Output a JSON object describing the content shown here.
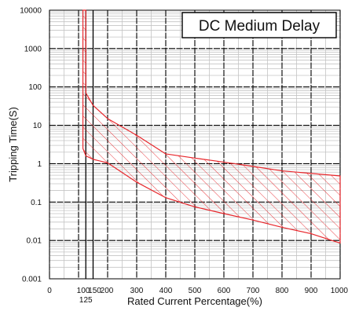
{
  "chart_data": {
    "type": "area",
    "title": "DC Medium Delay",
    "xlabel": "Rated Current Percentage(%)",
    "ylabel": "Tripping Time(S)",
    "x_scale": "linear",
    "y_scale": "log",
    "xlim": [
      0,
      1000
    ],
    "ylim": [
      0.001,
      10000
    ],
    "x_ticks": [
      {
        "value": 0,
        "label": "0"
      },
      {
        "value": 100,
        "label": "100"
      },
      {
        "value": 125,
        "label": "125"
      },
      {
        "value": 150,
        "label": "150"
      },
      {
        "value": 200,
        "label": "200"
      },
      {
        "value": 300,
        "label": "300"
      },
      {
        "value": 400,
        "label": "400"
      },
      {
        "value": 500,
        "label": "500"
      },
      {
        "value": 600,
        "label": "600"
      },
      {
        "value": 700,
        "label": "700"
      },
      {
        "value": 800,
        "label": "800"
      },
      {
        "value": 900,
        "label": "900"
      },
      {
        "value": 1000,
        "label": "1000"
      }
    ],
    "y_ticks": [
      {
        "value": 0.001,
        "label": "0.001"
      },
      {
        "value": 0.01,
        "label": "0.01"
      },
      {
        "value": 0.1,
        "label": "0.1"
      },
      {
        "value": 1,
        "label": "1"
      },
      {
        "value": 10,
        "label": "10"
      },
      {
        "value": 100,
        "label": "100"
      },
      {
        "value": 1000,
        "label": "1000"
      },
      {
        "value": 10000,
        "label": "10000"
      }
    ],
    "grid": true,
    "legend": "none",
    "series": [
      {
        "fill": "hatched",
        "color": "#e8262b",
        "upper": [
          {
            "x": 115,
            "y": 10000
          },
          {
            "x": 125,
            "y": 10000
          },
          {
            "x": 125,
            "y": 70
          },
          {
            "x": 150,
            "y": 33
          },
          {
            "x": 200,
            "y": 15
          },
          {
            "x": 300,
            "y": 5.5
          },
          {
            "x": 400,
            "y": 1.8
          },
          {
            "x": 500,
            "y": 1.4
          },
          {
            "x": 600,
            "y": 1.1
          },
          {
            "x": 700,
            "y": 0.85
          },
          {
            "x": 800,
            "y": 0.65
          },
          {
            "x": 1000,
            "y": 0.48
          }
        ],
        "lower": [
          {
            "x": 1000,
            "y": 0.0085
          },
          {
            "x": 900,
            "y": 0.015
          },
          {
            "x": 800,
            "y": 0.022
          },
          {
            "x": 700,
            "y": 0.034
          },
          {
            "x": 600,
            "y": 0.05
          },
          {
            "x": 500,
            "y": 0.075
          },
          {
            "x": 400,
            "y": 0.13
          },
          {
            "x": 300,
            "y": 0.33
          },
          {
            "x": 200,
            "y": 1.05
          },
          {
            "x": 150,
            "y": 1.3
          },
          {
            "x": 125,
            "y": 1.6
          },
          {
            "x": 115,
            "y": 2.5
          }
        ]
      }
    ]
  },
  "colors": {
    "curve": "#e8262b",
    "major_gridline": "#000000",
    "minor_gridline": "#c4c4c4",
    "background": "#ffffff"
  }
}
